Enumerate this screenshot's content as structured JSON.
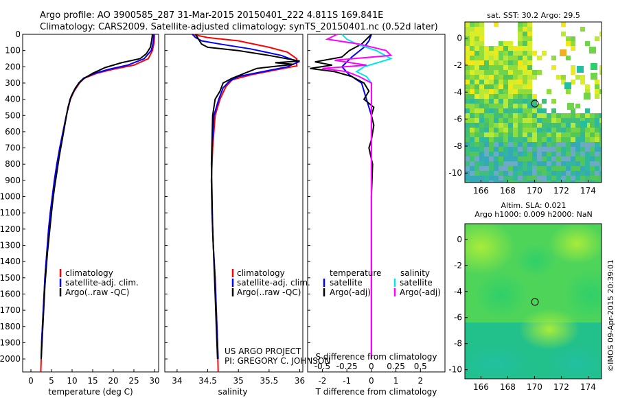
{
  "header": {
    "line1": "Argo profile: AO 3900585_287 31-Mar-2015 20150401_222 4.811S 169.841E",
    "line2": "Climatology: CARS2009. Satellite-adjusted climatology: synTS_20150401.nc (0.52d later)"
  },
  "depth_axis": {
    "ticks": [
      0,
      100,
      200,
      300,
      400,
      500,
      600,
      700,
      800,
      900,
      1000,
      1100,
      1200,
      1300,
      1400,
      1500,
      1600,
      1700,
      1800,
      1900,
      2000
    ],
    "range": [
      0,
      2080
    ]
  },
  "colors": {
    "climatology": "#ff0000",
    "satellite": "#0000ff",
    "argo": "#000000",
    "sat_salinity": "#00e5ee",
    "argo_salinity": "#ff00ff"
  },
  "temperature_panel": {
    "xlabel": "temperature (deg C)",
    "xticks": [
      "0",
      "5",
      "10",
      "15",
      "20",
      "25",
      "30"
    ],
    "legend": [
      "climatology",
      "satellite-adj. clim.",
      "Argo(..raw -QC)"
    ]
  },
  "salinity_panel": {
    "xlabel": "salinity",
    "xticks": [
      "34",
      "34.5",
      "35",
      "35.5",
      "36"
    ],
    "legend": [
      "climatology",
      "satellite-adj. clim.",
      "Argo(..raw -QC)"
    ],
    "credit1": "US ARGO PROJECT",
    "credit2": "PI: GREGORY C. JOHNSON"
  },
  "difference_panel": {
    "top_label": "S difference from climatology",
    "top_ticks": [
      "-0.5",
      "-0.25",
      "0",
      "0.25",
      "0.5"
    ],
    "xlabel": "T difference from climatology",
    "xticks": [
      "-2",
      "-1",
      "0",
      "1",
      "2"
    ],
    "legend_left_title": "temperature",
    "legend_right_title": "salinity",
    "legend_left": [
      "satellite",
      "Argo(-adj)"
    ],
    "legend_right": [
      "satellite",
      "Argo(-adj)"
    ]
  },
  "map_sst": {
    "title": "sat. SST: 30.2 Argo: 29.5",
    "yticks": [
      "0",
      "-2",
      "-4",
      "-6",
      "-8",
      "-10"
    ],
    "xticks": [
      "166",
      "168",
      "170",
      "172",
      "174"
    ]
  },
  "map_sla": {
    "title1": "Altim. SLA: 0.021",
    "title2": "Argo h1000: 0.009 h2000: NaN",
    "yticks": [
      "0",
      "-2",
      "-4",
      "-6",
      "-8",
      "-10"
    ],
    "xticks": [
      "166",
      "168",
      "170",
      "172",
      "174"
    ]
  },
  "stamp": "©IMOS 09-Apr-2015 20:39:01",
  "chart_data": [
    {
      "type": "line",
      "name": "temperature",
      "xlabel": "temperature (deg C)",
      "ylim": [
        0,
        2080
      ],
      "xlim": [
        -2,
        31
      ],
      "series": [
        {
          "name": "climatology",
          "color": "#ff0000",
          "points": [
            [
              30,
              0
            ],
            [
              29.9,
              50
            ],
            [
              29.5,
              100
            ],
            [
              28.5,
              150
            ],
            [
              25,
              190
            ],
            [
              20,
              215
            ],
            [
              16,
              240
            ],
            [
              13,
              270
            ],
            [
              11.8,
              300
            ],
            [
              10.5,
              350
            ],
            [
              9.6,
              400
            ],
            [
              8.6,
              500
            ],
            [
              7.8,
              600
            ],
            [
              7,
              700
            ],
            [
              6.3,
              800
            ],
            [
              5.7,
              900
            ],
            [
              5.2,
              1000
            ],
            [
              4.7,
              1100
            ],
            [
              4.3,
              1200
            ],
            [
              4,
              1300
            ],
            [
              3.7,
              1400
            ],
            [
              3.4,
              1500
            ],
            [
              3.2,
              1600
            ],
            [
              3,
              1700
            ],
            [
              2.8,
              1800
            ],
            [
              2.6,
              1900
            ],
            [
              2.5,
              2000
            ],
            [
              2.4,
              2080
            ]
          ]
        },
        {
          "name": "satellite-adj. clim.",
          "color": "#0000ff",
          "points": [
            [
              29.8,
              0
            ],
            [
              29.7,
              50
            ],
            [
              29.2,
              100
            ],
            [
              27.5,
              150
            ],
            [
              23.5,
              190
            ],
            [
              19,
              215
            ],
            [
              15.5,
              240
            ],
            [
              12.8,
              270
            ],
            [
              11.6,
              300
            ],
            [
              10.4,
              350
            ],
            [
              9.5,
              400
            ],
            [
              8.6,
              500
            ],
            [
              7.8,
              600
            ],
            [
              7,
              700
            ],
            [
              6.3,
              800
            ],
            [
              5.7,
              900
            ],
            [
              5.2,
              1000
            ],
            [
              4.7,
              1100
            ],
            [
              4.3,
              1200
            ],
            [
              4,
              1300
            ],
            [
              3.7,
              1400
            ],
            [
              3.4,
              1500
            ],
            [
              3.2,
              1600
            ],
            [
              3,
              1700
            ],
            [
              2.8,
              1800
            ],
            [
              2.6,
              1900
            ],
            [
              2.5,
              2000
            ]
          ]
        },
        {
          "name": "Argo(..raw -QC)",
          "color": "#000000",
          "points": [
            [
              29.5,
              0
            ],
            [
              29.3,
              40
            ],
            [
              29,
              80
            ],
            [
              28,
              120
            ],
            [
              26.5,
              150
            ],
            [
              22,
              175
            ],
            [
              18,
              205
            ],
            [
              15,
              240
            ],
            [
              13,
              270
            ],
            [
              12,
              290
            ],
            [
              10.8,
              330
            ],
            [
              9.8,
              380
            ],
            [
              9,
              450
            ],
            [
              8.3,
              550
            ],
            [
              7.6,
              650
            ],
            [
              6.9,
              750
            ],
            [
              6.3,
              850
            ],
            [
              5.7,
              950
            ],
            [
              5.2,
              1050
            ],
            [
              4.8,
              1150
            ],
            [
              4.4,
              1250
            ],
            [
              4,
              1350
            ],
            [
              3.7,
              1450
            ],
            [
              3.4,
              1550
            ],
            [
              3.2,
              1650
            ],
            [
              3,
              1750
            ],
            [
              2.8,
              1850
            ],
            [
              2.6,
              1950
            ],
            [
              2.5,
              2000
            ]
          ]
        }
      ]
    },
    {
      "type": "line",
      "name": "salinity",
      "xlabel": "salinity",
      "ylim": [
        0,
        2080
      ],
      "xlim": [
        33.8,
        36.05
      ],
      "series": [
        {
          "name": "climatology",
          "color": "#ff0000",
          "points": [
            [
              34.25,
              0
            ],
            [
              34.5,
              20
            ],
            [
              35,
              40
            ],
            [
              35.5,
              80
            ],
            [
              35.8,
              110
            ],
            [
              35.95,
              150
            ],
            [
              35.95,
              195
            ],
            [
              35.6,
              220
            ],
            [
              35.2,
              250
            ],
            [
              34.9,
              280
            ],
            [
              34.8,
              320
            ],
            [
              34.7,
              400
            ],
            [
              34.62,
              500
            ],
            [
              34.58,
              700
            ],
            [
              34.56,
              900
            ],
            [
              34.57,
              1100
            ],
            [
              34.59,
              1300
            ],
            [
              34.62,
              1500
            ],
            [
              34.64,
              1700
            ],
            [
              34.66,
              1900
            ],
            [
              34.67,
              2080
            ]
          ]
        },
        {
          "name": "satellite-adj. clim.",
          "color": "#0000ff",
          "points": [
            [
              34.25,
              0
            ],
            [
              34.3,
              20
            ],
            [
              34.4,
              40
            ],
            [
              34.7,
              60
            ],
            [
              35.2,
              90
            ],
            [
              35.7,
              130
            ],
            [
              35.98,
              170
            ],
            [
              35.8,
              200
            ],
            [
              35.4,
              230
            ],
            [
              35.0,
              260
            ],
            [
              34.85,
              290
            ],
            [
              34.75,
              330
            ],
            [
              34.68,
              400
            ],
            [
              34.6,
              500
            ],
            [
              34.57,
              700
            ],
            [
              34.56,
              900
            ],
            [
              34.57,
              1100
            ],
            [
              34.59,
              1300
            ],
            [
              34.62,
              1500
            ],
            [
              34.64,
              1700
            ],
            [
              34.66,
              1900
            ],
            [
              34.67,
              2000
            ]
          ]
        },
        {
          "name": "Argo(..raw -QC)",
          "color": "#000000",
          "points": [
            [
              34.3,
              0
            ],
            [
              34.35,
              30
            ],
            [
              34.4,
              60
            ],
            [
              34.5,
              80
            ],
            [
              35,
              100
            ],
            [
              35.5,
              130
            ],
            [
              36.0,
              165
            ],
            [
              35.6,
              175
            ],
            [
              35.9,
              185
            ],
            [
              35.3,
              210
            ],
            [
              35.1,
              240
            ],
            [
              34.9,
              270
            ],
            [
              34.75,
              300
            ],
            [
              34.7,
              350
            ],
            [
              34.62,
              400
            ],
            [
              34.58,
              500
            ],
            [
              34.57,
              650
            ],
            [
              34.56,
              800
            ],
            [
              34.57,
              1000
            ],
            [
              34.58,
              1200
            ],
            [
              34.6,
              1400
            ],
            [
              34.62,
              1600
            ],
            [
              34.64,
              1800
            ],
            [
              34.66,
              2000
            ]
          ]
        }
      ]
    },
    {
      "type": "line",
      "name": "differences",
      "xlabel": "T difference from climatology",
      "ylim": [
        0,
        2080
      ],
      "xlim": [
        -2.6,
        3.0
      ],
      "series": [
        {
          "name": "temperature satellite",
          "color": "#0000ff",
          "points": [
            [
              0,
              0
            ],
            [
              -0.1,
              40
            ],
            [
              -0.3,
              80
            ],
            [
              -0.8,
              140
            ],
            [
              -1.2,
              200
            ],
            [
              -0.9,
              250
            ],
            [
              -0.4,
              300
            ],
            [
              -0.2,
              400
            ],
            [
              0,
              500
            ],
            [
              0,
              2000
            ]
          ]
        },
        {
          "name": "temperature Argo(-adj)",
          "color": "#000000",
          "points": [
            [
              0,
              0
            ],
            [
              -0.2,
              30
            ],
            [
              -0.4,
              60
            ],
            [
              -0.9,
              100
            ],
            [
              -1.2,
              140
            ],
            [
              -2.3,
              170
            ],
            [
              -1.6,
              190
            ],
            [
              -2.5,
              210
            ],
            [
              -1.5,
              230
            ],
            [
              -0.8,
              260
            ],
            [
              -0.3,
              300
            ],
            [
              -0.1,
              350
            ],
            [
              -0.3,
              400
            ],
            [
              0.1,
              450
            ],
            [
              0,
              500
            ],
            [
              0.1,
              560
            ],
            [
              0,
              650
            ],
            [
              -0.1,
              700
            ],
            [
              0.05,
              800
            ],
            [
              0,
              1000
            ],
            [
              0,
              2000
            ]
          ]
        },
        {
          "name": "salinity satellite",
          "color": "#00e5ee",
          "points": [
            [
              -1.2,
              0
            ],
            [
              -1.0,
              30
            ],
            [
              -0.6,
              60
            ],
            [
              0.2,
              100
            ],
            [
              0.8,
              150
            ],
            [
              -0.3,
              200
            ],
            [
              -0.6,
              230
            ],
            [
              -0.2,
              260
            ],
            [
              0,
              300
            ],
            [
              0,
              2000
            ]
          ]
        },
        {
          "name": "salinity Argo(-adj)",
          "color": "#ff00ff",
          "points": [
            [
              -1.4,
              0
            ],
            [
              -1.8,
              30
            ],
            [
              -0.5,
              60
            ],
            [
              0.6,
              100
            ],
            [
              0.8,
              130
            ],
            [
              -1.5,
              160
            ],
            [
              -0.2,
              190
            ],
            [
              -2,
              210
            ],
            [
              -1,
              230
            ],
            [
              -0.5,
              260
            ],
            [
              0,
              300
            ],
            [
              0,
              2000
            ]
          ]
        }
      ]
    }
  ]
}
